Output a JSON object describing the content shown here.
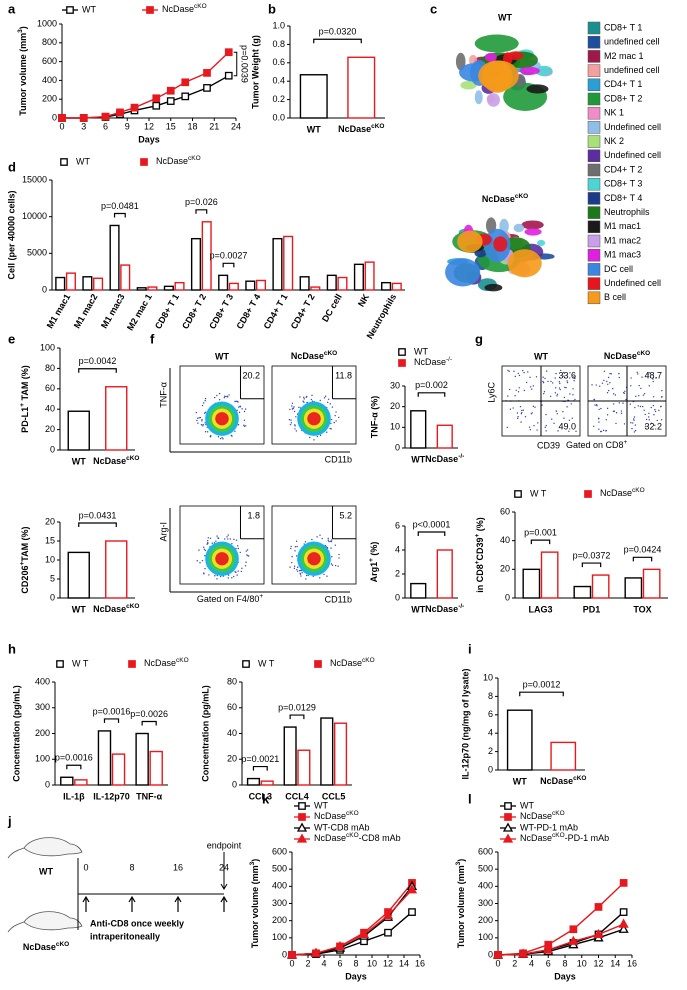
{
  "panels": [
    "a",
    "b",
    "c",
    "d",
    "e",
    "f",
    "g",
    "h",
    "i",
    "j",
    "k",
    "l"
  ],
  "chart_data": [
    {
      "type": "line",
      "x": [
        0,
        3,
        6,
        8,
        10,
        13,
        15,
        17,
        20,
        23
      ],
      "xlim": [
        0,
        24
      ],
      "xticks": [
        0,
        3,
        6,
        9,
        12,
        15,
        18,
        21,
        24
      ],
      "ylim": [
        0,
        1000
      ],
      "yticks": [
        0,
        200,
        400,
        600,
        800,
        1000
      ],
      "xlabel": "Days",
      "ylabel": [
        "Tumor volume (mm",
        "3",
        ")"
      ],
      "legend": "top",
      "series": [
        {
          "name": "WT",
          "color": "#000000",
          "marker": "square-open",
          "values": [
            0,
            0,
            10,
            40,
            80,
            130,
            180,
            230,
            320,
            450
          ]
        },
        {
          "name": [
            "NcDase",
            "cKO"
          ],
          "color": "#e8191e",
          "marker": "square-filled",
          "values": [
            0,
            0,
            15,
            60,
            110,
            210,
            290,
            380,
            480,
            700
          ]
        }
      ],
      "annotations": [
        {
          "text": "p=0.0039"
        }
      ]
    },
    {
      "type": "bar",
      "categories": [
        "WT",
        [
          "NcDase",
          "cKO"
        ]
      ],
      "values": [
        0.47,
        0.66
      ],
      "colors": [
        "#000000",
        "#e8191e"
      ],
      "ylim": [
        0,
        1.0
      ],
      "yticks": [
        {
          "value": 0,
          "label": "0.0"
        },
        0.2,
        0.4,
        0.6,
        0.8,
        {
          "value": 1,
          "label": "1.0"
        }
      ],
      "ylabel": "Tumor Weight (g)",
      "annotations": [
        {
          "text": "p=0.0320"
        }
      ]
    },
    {
      "type": "bar",
      "categories": [
        "M1 mac1",
        "M1 mac2",
        "M1 mac3",
        "M2 mac 1",
        "CD8+ T 1",
        "CD8+ T 2",
        "CD8+ T 3",
        "CD8+ T 4",
        "CD4+ T 1",
        "CD4+ T 2",
        "DC cell",
        "NK",
        "Neutrophils"
      ],
      "series": [
        {
          "name": "WT",
          "color": "#000000",
          "marker": "square-open",
          "values": [
            1700,
            1800,
            8800,
            300,
            500,
            7000,
            2000,
            1200,
            7000,
            1800,
            2000,
            3500,
            1000
          ]
        },
        {
          "name": [
            "NcDase",
            "cKO"
          ],
          "color": "#e8191e",
          "marker": "square-filled",
          "values": [
            2300,
            1600,
            3400,
            400,
            1000,
            9300,
            900,
            1300,
            7300,
            400,
            1700,
            3800,
            900
          ]
        }
      ],
      "ylim": [
        0,
        15000
      ],
      "yticks": [
        0,
        5000,
        10000,
        15000
      ],
      "ylabel": "Cell (per 40000 cells)",
      "legend": "top",
      "annotations": [
        {
          "text": "p=0.0481",
          "category": 2
        },
        {
          "text": "p=0.026",
          "category": 5
        },
        {
          "text": "p=0.0027",
          "category": 6
        }
      ]
    },
    {
      "type": "bar",
      "categories": [
        "WT",
        [
          "NcDase",
          "cKO"
        ]
      ],
      "values": [
        38,
        62
      ],
      "colors": [
        "#000000",
        "#e8191e"
      ],
      "ylim": [
        0,
        100
      ],
      "yticks": [
        0,
        20,
        40,
        60,
        80,
        100
      ],
      "ylabel": [
        "PD-L1",
        "+",
        " TAM (%)"
      ],
      "annotations": [
        {
          "text": "p=0.0042"
        }
      ]
    },
    {
      "type": "bar",
      "categories": [
        "WT",
        [
          "NcDase",
          "cKO"
        ]
      ],
      "values": [
        12,
        15
      ],
      "colors": [
        "#000000",
        "#e8191e"
      ],
      "ylim": [
        0,
        20
      ],
      "yticks": [
        0,
        5,
        10,
        15,
        20
      ],
      "ylabel": [
        "CD206",
        "+",
        "TAM (%)"
      ],
      "annotations": [
        {
          "text": "p=0.0431"
        }
      ]
    },
    {
      "type": "bar",
      "categories": [
        "WT",
        [
          "NcDase",
          "-/-"
        ]
      ],
      "values": [
        18,
        11
      ],
      "colors": [
        "#000000",
        "#e8191e"
      ],
      "markers": [
        "square-open",
        "square-filled"
      ],
      "ylim": [
        0,
        30
      ],
      "yticks": [
        0,
        10,
        20,
        30
      ],
      "ylabel": "TNF-α (%)",
      "legend": "top",
      "annotations": [
        {
          "text": "p=0.002"
        }
      ]
    },
    {
      "type": "bar",
      "categories": [
        "WT",
        [
          "NcDase",
          "-/-"
        ]
      ],
      "values": [
        1.2,
        4.0
      ],
      "colors": [
        "#000000",
        "#e8191e"
      ],
      "ylim": [
        0,
        6
      ],
      "yticks": [
        0,
        2,
        4,
        6
      ],
      "ylabel": [
        "Arg1",
        "+",
        " (%)"
      ],
      "annotations": [
        {
          "text": "p<0.0001"
        }
      ]
    },
    {
      "type": "bar",
      "categories": [
        "LAG3",
        "PD1",
        "TOX"
      ],
      "series": [
        {
          "name": "W T",
          "color": "#000000",
          "marker": "square-open",
          "values": [
            20,
            8,
            14
          ]
        },
        {
          "name": [
            "NcDase",
            "cKO"
          ],
          "color": "#e8191e",
          "marker": "square-filled",
          "values": [
            32,
            16,
            20
          ]
        }
      ],
      "ylim": [
        0,
        60
      ],
      "yticks": [
        0,
        20,
        40,
        60
      ],
      "ylabel": [
        "in CD8",
        "+",
        "CD39",
        "+",
        " (%)"
      ],
      "legend": "top",
      "annotations": [
        {
          "text": "p=0.001",
          "category": 0
        },
        {
          "text": "p=0.0372",
          "category": 1
        },
        {
          "text": "p=0.0424",
          "category": 2
        }
      ]
    },
    {
      "type": "bar",
      "categories": [
        "IL-1β",
        "IL-12p70",
        "TNF-α"
      ],
      "series": [
        {
          "name": "W T",
          "color": "#000000",
          "marker": "square-open",
          "values": [
            30,
            210,
            200
          ]
        },
        {
          "name": [
            "NcDase",
            "cKO"
          ],
          "color": "#e8191e",
          "marker": "square-filled",
          "values": [
            20,
            120,
            130
          ]
        }
      ],
      "ylim": [
        0,
        400
      ],
      "yticks": [
        0,
        100,
        200,
        300,
        400
      ],
      "ylabel": "Concentration (pg/mL)",
      "legend": "top",
      "annotations": [
        {
          "text": "p=0.0016",
          "category": 0
        },
        {
          "text": "p=0.0016",
          "category": 1
        },
        {
          "text": "p=0.0026",
          "category": 2
        }
      ]
    },
    {
      "type": "bar",
      "categories": [
        "CCL3",
        "CCL4",
        "CCL5"
      ],
      "series": [
        {
          "name": "W T",
          "color": "#000000",
          "marker": "square-open",
          "values": [
            5,
            45,
            52
          ]
        },
        {
          "name": [
            "NcDase",
            "cKO"
          ],
          "color": "#e8191e",
          "marker": "square-filled",
          "values": [
            3,
            27,
            48
          ]
        }
      ],
      "ylim": [
        0,
        80
      ],
      "yticks": [
        0,
        20,
        40,
        60,
        80
      ],
      "ylabel": "Concentration (pg/mL)",
      "legend": "top",
      "annotations": [
        {
          "text": "p=0.0021",
          "category": 0
        },
        {
          "text": "p=0.0129",
          "category": 1
        }
      ]
    },
    {
      "type": "bar",
      "categories": [
        "WT",
        [
          "NcDase",
          "cKO"
        ]
      ],
      "values": [
        6.5,
        3.0
      ],
      "colors": [
        "#000000",
        "#e8191e"
      ],
      "ylim": [
        0,
        10
      ],
      "yticks": [
        0,
        2,
        4,
        6,
        8,
        10
      ],
      "ylabel": "IL-12p70 (ng/mg of lysate)",
      "annotations": [
        {
          "text": "p=0.0012"
        }
      ]
    },
    {
      "type": "line",
      "x": [
        0,
        3,
        6,
        9,
        12,
        15
      ],
      "xlim": [
        0,
        16
      ],
      "xticks": [
        0,
        2,
        4,
        6,
        8,
        10,
        12,
        14,
        16
      ],
      "ylim": [
        0,
        600
      ],
      "yticks": [
        0,
        100,
        200,
        300,
        400,
        500,
        600
      ],
      "xlabel": "Days",
      "ylabel": [
        "Tumor volume (mm",
        "3",
        ")"
      ],
      "legend": "top",
      "series": [
        {
          "name": "WT",
          "color": "#000000",
          "marker": "square-open",
          "values": [
            0,
            5,
            30,
            80,
            130,
            250
          ]
        },
        {
          "name": [
            "NcDase",
            "cKO"
          ],
          "color": "#e8191e",
          "marker": "square-filled",
          "values": [
            0,
            10,
            50,
            130,
            250,
            420
          ]
        },
        {
          "name": "WT-CD8 mAb",
          "color": "#000000",
          "marker": "triangle-open",
          "values": [
            0,
            10,
            40,
            110,
            220,
            400
          ]
        },
        {
          "name": [
            "NcDase",
            "cKO",
            "-CD8 mAb"
          ],
          "color": "#e8191e",
          "marker": "triangle-filled",
          "values": [
            0,
            10,
            50,
            120,
            230,
            380
          ]
        }
      ]
    },
    {
      "type": "line",
      "x": [
        0,
        3,
        6,
        9,
        12,
        15
      ],
      "xlim": [
        0,
        16
      ],
      "xticks": [
        0,
        2,
        4,
        6,
        8,
        10,
        12,
        14,
        16
      ],
      "ylim": [
        0,
        600
      ],
      "yticks": [
        0,
        100,
        200,
        300,
        400,
        500,
        600
      ],
      "xlabel": "Days",
      "ylabel": [
        "Tumor volume (mm",
        "3",
        ")"
      ],
      "legend": "top",
      "series": [
        {
          "name": "WT",
          "color": "#000000",
          "marker": "square-open",
          "values": [
            0,
            5,
            30,
            70,
            120,
            250
          ]
        },
        {
          "name": [
            "NcDase",
            "cKO"
          ],
          "color": "#e8191e",
          "marker": "square-filled",
          "values": [
            0,
            10,
            60,
            150,
            280,
            420
          ]
        },
        {
          "name": "WT-PD-1 mAb",
          "color": "#000000",
          "marker": "triangle-open",
          "values": [
            0,
            5,
            20,
            60,
            100,
            150
          ]
        },
        {
          "name": [
            "NcDase",
            "cKO",
            "-PD-1 mAb"
          ],
          "color": "#e8191e",
          "marker": "triangle-filled",
          "values": [
            0,
            5,
            30,
            80,
            120,
            180
          ]
        }
      ]
    }
  ],
  "tsne": {
    "titles": [
      "WT",
      [
        "NcDase",
        "cKO"
      ]
    ],
    "clusters": [
      {
        "label": "CD8+ T 1",
        "color": "#1b8f8f"
      },
      {
        "label": "undefined cell",
        "color": "#1f4e9e"
      },
      {
        "label": "M2 mac 1",
        "color": "#a0174a"
      },
      {
        "label": "undefined cell",
        "color": "#f4a0a0"
      },
      {
        "label": "CD4+ T 1",
        "color": "#2a9fd6"
      },
      {
        "label": "CD8+ T 2",
        "color": "#1f9a3a"
      },
      {
        "label": "NK 1",
        "color": "#f08cc8"
      },
      {
        "label": "Undefined cell",
        "color": "#8fbfe8"
      },
      {
        "label": "NK 2",
        "color": "#a8e07a"
      },
      {
        "label": "Undefined cell",
        "color": "#5b2da0"
      },
      {
        "label": "CD4+ T 2",
        "color": "#6e6e6e"
      },
      {
        "label": "CD8+ T 3",
        "color": "#4dd4d4"
      },
      {
        "label": "CD8+ T 4",
        "color": "#1a3a8a"
      },
      {
        "label": "Neutrophils",
        "color": "#1a7a1a"
      },
      {
        "label": "M1 mac1",
        "color": "#1a1a1a"
      },
      {
        "label": "M1 mac2",
        "color": "#c9a0e8"
      },
      {
        "label": "M1 mac3",
        "color": "#e020e0"
      },
      {
        "label": "DC cell",
        "color": "#3a86e0"
      },
      {
        "label": "Undefined cell",
        "color": "#e8141e"
      },
      {
        "label": "B cell",
        "color": "#f59a1a"
      }
    ]
  },
  "flow_f": {
    "columns": [
      "WT",
      [
        "NcDase",
        "cKO"
      ]
    ],
    "rows": [
      {
        "y_label": "TNF-α",
        "values": [
          "20.2",
          "11.8"
        ]
      },
      {
        "y_label": "Arg-I",
        "values": [
          "1.8",
          "5.2"
        ]
      }
    ],
    "x_label": "CD11b",
    "gate": [
      "Gated on F4/80",
      "+"
    ]
  },
  "flow_g": {
    "columns": [
      "WT",
      [
        "NcDase",
        "cKO"
      ]
    ],
    "values": [
      [
        "33.6",
        "49.0"
      ],
      [
        "48.7",
        "32.2"
      ]
    ],
    "y_label": "Ly6C",
    "x_label": "CD39",
    "gate": [
      "Gated on CD8",
      "+"
    ]
  },
  "design": {
    "groups": [
      "WT",
      [
        "NcDase",
        "cKO"
      ]
    ],
    "timeline": [
      "0",
      "8",
      "16",
      "24"
    ],
    "endpoint": "endpoint",
    "treatment": [
      "Anti-CD8 once weekly",
      "intraperitoneally"
    ]
  }
}
